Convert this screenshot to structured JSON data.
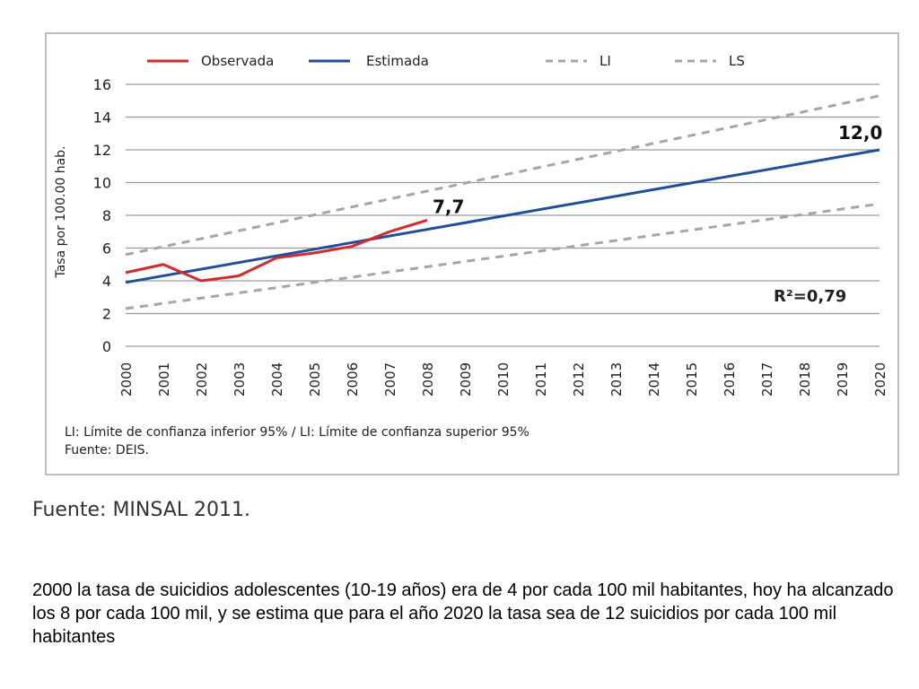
{
  "chart_data": {
    "type": "line",
    "categories": [
      "2000",
      "2001",
      "2002",
      "2003",
      "2004",
      "2005",
      "2006",
      "2007",
      "2008",
      "2009",
      "2010",
      "2011",
      "2012",
      "2013",
      "2014",
      "2015",
      "2016",
      "2017",
      "2018",
      "2019",
      "2020"
    ],
    "ylabel": "Tasa por 100.00 hab.",
    "ylim": [
      0,
      16
    ],
    "yticks": [
      0,
      2,
      4,
      6,
      8,
      10,
      12,
      14,
      16
    ],
    "grid": true,
    "legend_position": "top",
    "series": [
      {
        "name": "Observada",
        "color": "#d42a2a",
        "dash": false,
        "x": [
          "2000",
          "2001",
          "2002",
          "2003",
          "2004",
          "2005",
          "2006",
          "2007",
          "2008"
        ],
        "values": [
          4.5,
          5.0,
          4.0,
          4.3,
          5.4,
          5.7,
          6.1,
          7.0,
          7.7
        ]
      },
      {
        "name": "Estimada",
        "color": "#1f4e9c",
        "dash": false,
        "x": [
          "2000",
          "2020"
        ],
        "values": [
          3.9,
          12.0
        ]
      },
      {
        "name": "LI",
        "color": "#a6a6a6",
        "dash": true,
        "x": [
          "2000",
          "2020"
        ],
        "values": [
          2.3,
          8.7
        ]
      },
      {
        "name": "LS",
        "color": "#a6a6a6",
        "dash": true,
        "x": [
          "2000",
          "2020"
        ],
        "values": [
          5.6,
          15.3
        ]
      }
    ],
    "annotations": [
      {
        "text": "7,7",
        "x": "2008",
        "y": 7.7
      },
      {
        "text": "12,0",
        "x": "2020",
        "y": 12.0
      },
      {
        "text": "R²=0,79"
      }
    ],
    "notes": [
      "LI: Límite de confianza inferior 95% / LI: Límite de confianza superior 95%",
      "Fuente: DEIS."
    ]
  },
  "source_caption": "Fuente: MINSAL 2011.",
  "description": "2000 la tasa de suicidios adolescentes (10-19 años) era de 4 por cada 100 mil habitantes, hoy ha alcanzado los 8 por cada 100 mil, y se estima que para el año 2020 la tasa sea de 12 suicidios por cada 100 mil habitantes"
}
